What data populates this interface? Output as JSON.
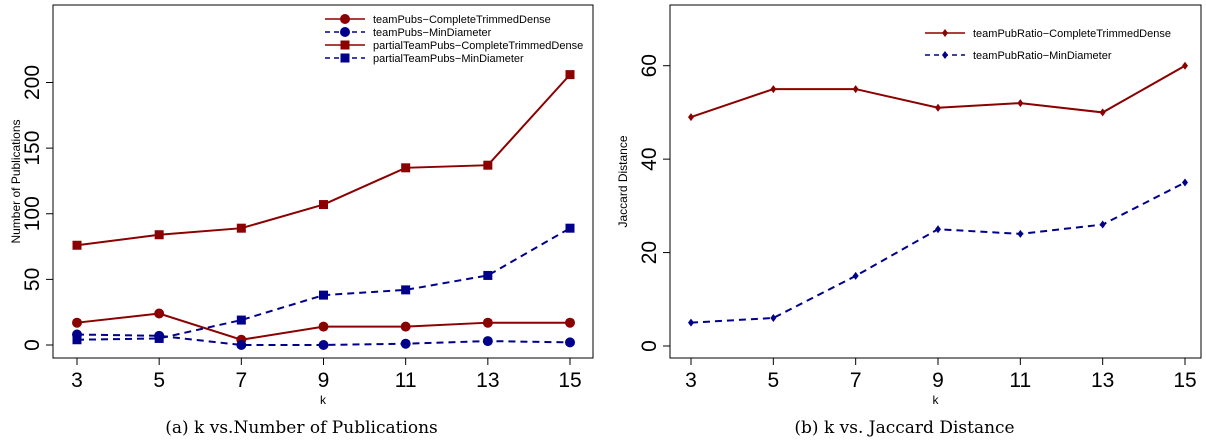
{
  "chart_data": [
    {
      "type": "line",
      "caption_label": "(a)",
      "caption_text": "k vs.Number of Publications",
      "xlabel": "k",
      "ylabel": "Number of Publications",
      "x": [
        3,
        5,
        7,
        9,
        11,
        13,
        15
      ],
      "xlim": [
        3,
        15
      ],
      "ylim": [
        0,
        240
      ],
      "yticks": [
        0,
        50,
        100,
        150,
        200
      ],
      "legend_position": "top-right",
      "grid": false,
      "series": [
        {
          "name": "teamPubs−CompleteTrimmedDense",
          "values": [
            17,
            24,
            4,
            14,
            14,
            17,
            17
          ],
          "color": "#8b0000",
          "marker": "circle",
          "dash": "solid"
        },
        {
          "name": "teamPubs−MinDiameter",
          "values": [
            8,
            7,
            0,
            0,
            1,
            3,
            2
          ],
          "color": "#00008b",
          "marker": "circle",
          "dash": "dashed"
        },
        {
          "name": "partialTeamPubs−CompleteTrimmedDense",
          "values": [
            76,
            84,
            89,
            107,
            135,
            137,
            206
          ],
          "color": "#8b0000",
          "marker": "square",
          "dash": "solid"
        },
        {
          "name": "partialTeamPubs−MinDiameter",
          "values": [
            4,
            5,
            19,
            38,
            42,
            53,
            89
          ],
          "color": "#00008b",
          "marker": "square",
          "dash": "dashed"
        }
      ]
    },
    {
      "type": "line",
      "caption_label": "(b)",
      "caption_text": "k vs. Jaccard Distance",
      "xlabel": "k",
      "ylabel": "Jaccard Distance",
      "x": [
        3,
        5,
        7,
        9,
        11,
        13,
        15
      ],
      "xlim": [
        3,
        15
      ],
      "ylim": [
        0,
        70
      ],
      "yticks": [
        0,
        20,
        40,
        60
      ],
      "legend_position": "top-right",
      "grid": false,
      "series": [
        {
          "name": "teamPubRatio−CompleteTrimmedDense",
          "values": [
            49,
            55,
            55,
            51,
            52,
            50,
            60
          ],
          "color": "#8b0000",
          "marker": "diamond",
          "dash": "solid"
        },
        {
          "name": "teamPubRatio−MinDiameter",
          "values": [
            5,
            6,
            15,
            25,
            24,
            26,
            35
          ],
          "color": "#00008b",
          "marker": "diamond",
          "dash": "dashed"
        }
      ]
    }
  ]
}
